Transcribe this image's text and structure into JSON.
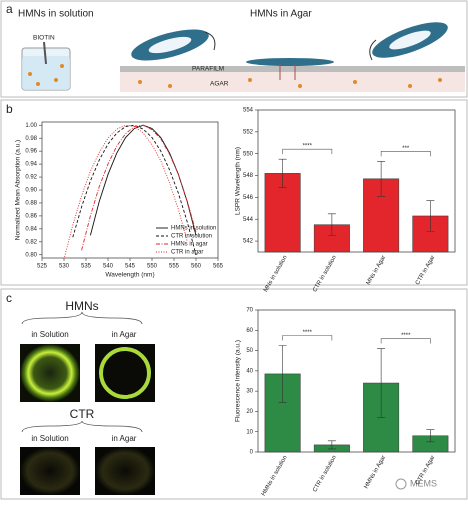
{
  "panel_a": {
    "letter": "a",
    "left_title": "HMNs in solution",
    "right_title": "HMNs in Agar",
    "biotin": "BIOTIN",
    "parafilm": "PARAFILM",
    "agar": "AGAR"
  },
  "panel_b": {
    "letter": "b"
  },
  "panel_c": {
    "letter": "c",
    "hmns": "HMNs",
    "hmns_solution": "in Solution",
    "hmns_agar": "in Agar",
    "ctr": "CTR",
    "ctr_solution": "in Solution",
    "ctr_agar": "in Agar"
  },
  "watermark": "MEMS",
  "chart_data": [
    {
      "type": "line",
      "x_label": "Wavelength (nm)",
      "y_label": "Normalized Mean Absorption (a.u.)",
      "x": [
        530,
        532,
        534,
        536,
        538,
        540,
        542,
        544,
        546,
        548,
        550,
        552,
        554,
        556,
        558,
        560,
        562
      ],
      "xlim": [
        525,
        565
      ],
      "xticks": [
        525,
        530,
        535,
        540,
        545,
        550,
        555,
        560,
        565
      ],
      "ylim": [
        0.795,
        1.005
      ],
      "yticks": [
        {
          "value": 0.8,
          "label": "0.80"
        },
        0.82,
        0.84,
        0.86,
        0.88,
        {
          "value": 0.9,
          "label": "0.90"
        },
        0.92,
        0.94,
        0.96,
        0.98,
        {
          "value": 1,
          "label": "1.00"
        }
      ],
      "legend": "lower right",
      "series": [
        {
          "name": "HMNs in solution",
          "color": "#111111",
          "dash": "solid",
          "values": [
            null,
            null,
            null,
            0.83,
            0.882,
            0.924,
            0.957,
            0.981,
            0.995,
            1.0,
            0.995,
            0.981,
            0.957,
            0.924,
            0.882,
            0.83,
            null
          ]
        },
        {
          "name": "CTR in solution",
          "color": "#111111",
          "dash": "dashed",
          "values": [
            null,
            0.827,
            0.874,
            0.914,
            0.946,
            0.971,
            0.988,
            0.998,
            1.0,
            0.994,
            0.981,
            0.96,
            0.931,
            0.895,
            0.851,
            0.8,
            null
          ]
        },
        {
          "name": "HMNs in agar",
          "color": "#e0262a",
          "dash": "dashdot",
          "values": [
            null,
            null,
            0.807,
            0.86,
            0.905,
            0.94,
            0.968,
            0.987,
            0.998,
            1.0,
            0.993,
            0.979,
            0.955,
            0.924,
            0.883,
            0.835,
            null
          ]
        },
        {
          "name": "CTR in agar",
          "color": "#e0262a",
          "dash": "dotted",
          "values": [
            0.793,
            0.846,
            0.891,
            0.929,
            0.958,
            0.98,
            0.994,
            1.0,
            0.998,
            0.988,
            0.97,
            0.945,
            0.911,
            0.87,
            0.821,
            null,
            null
          ]
        }
      ]
    },
    {
      "type": "bar",
      "y_label": "LSPR Wavelength (nm)",
      "categories": [
        "MNs in solution",
        "CTR in solution",
        "MNs in Agar",
        "CTR in Agar"
      ],
      "values": [
        548.2,
        543.5,
        547.7,
        544.3
      ],
      "errors": [
        1.3,
        1.0,
        1.6,
        1.4
      ],
      "color": "#e3262b",
      "ylim": [
        541,
        554
      ],
      "yticks": [
        542,
        544,
        546,
        548,
        550,
        552,
        554
      ],
      "significance": [
        "****",
        "***"
      ]
    },
    {
      "type": "bar",
      "y_label": "Fluorescence Intensity (a.u.)",
      "categories": [
        "HMNs in solution",
        "CTR in solution",
        "HMNs in Agar",
        "CTR in Agar"
      ],
      "values": [
        38.5,
        3.5,
        34,
        8
      ],
      "errors": [
        14,
        2,
        17,
        3
      ],
      "color": "#2e8b45",
      "ylim": [
        0,
        70
      ],
      "yticks": [
        0,
        10,
        20,
        30,
        40,
        50,
        60,
        70
      ],
      "significance": [
        "****",
        "****"
      ]
    }
  ]
}
